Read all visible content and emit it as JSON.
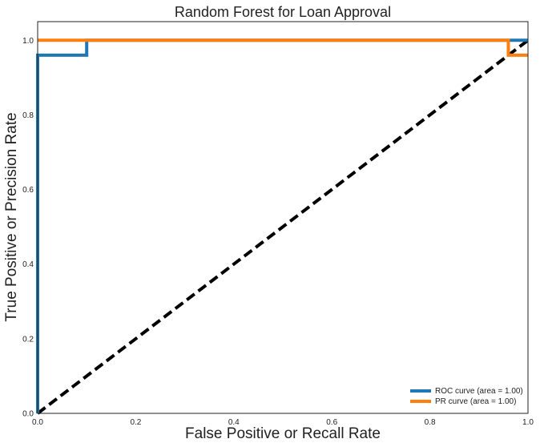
{
  "chart_data": {
    "type": "line",
    "title": "Random Forest for Loan Approval",
    "xlabel": "False Positive or Recall Rate",
    "ylabel": "True Positive or Precision Rate",
    "xlim": [
      0,
      1
    ],
    "ylim": [
      0,
      1.05
    ],
    "xticks": [
      "0.0",
      "0.2",
      "0.4",
      "0.6",
      "0.8",
      "1.0"
    ],
    "yticks": [
      "0.0",
      "0.2",
      "0.4",
      "0.6",
      "0.8",
      "1.0"
    ],
    "grid": false,
    "legend_position": "lower-right",
    "series": [
      {
        "name": "ROC curve (area = 1.00)",
        "color": "#1f77b4",
        "x": [
          0.0,
          0.0,
          0.0,
          0.1,
          0.1,
          0.96,
          0.96,
          1.0
        ],
        "y": [
          0.0,
          0.0,
          0.96,
          0.96,
          1.0,
          1.0,
          1.0,
          1.0
        ]
      },
      {
        "name": "PR curve (area = 1.00)",
        "color": "#ff7f0e",
        "x": [
          0.0,
          0.1,
          0.96,
          0.96,
          1.0
        ],
        "y": [
          1.0,
          1.0,
          1.0,
          0.96,
          0.96
        ]
      },
      {
        "color": "#000000",
        "dashed": true,
        "x": [
          0.0,
          1.0
        ],
        "y": [
          0.0,
          1.0
        ]
      }
    ]
  }
}
